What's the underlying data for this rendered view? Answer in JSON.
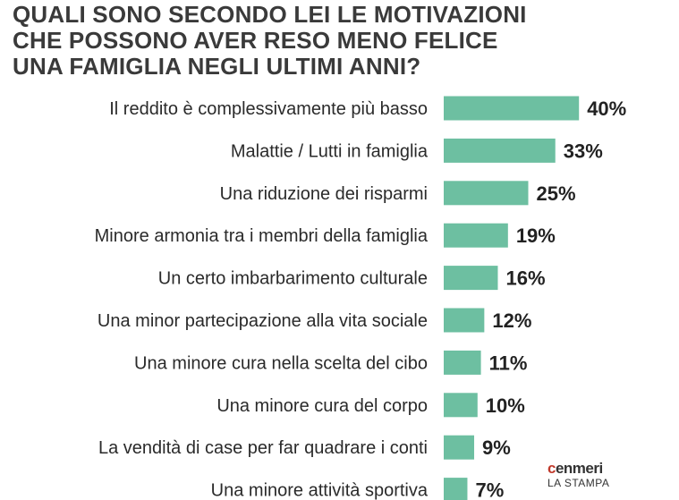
{
  "colors": {
    "bar": "#6dbfa1",
    "title": "#3a3a3a",
    "label": "#2a2a2a"
  },
  "chart_data": {
    "type": "bar",
    "orientation": "horizontal",
    "title": "QUALI SONO SECONDO LEI LE MOTIVAZIONI CHE POSSONO AVER RESO MENO FELICE UNA FAMIGLIA NEGLI ULTIMI ANNI?",
    "title_lines": [
      "QUALI SONO SECONDO LEI LE MOTIVAZIONI",
      "CHE POSSONO AVER RESO MENO FELICE",
      "UNA FAMIGLIA NEGLI ULTIMI ANNI?"
    ],
    "categories": [
      "Il reddito è complessivamente più basso",
      "Malattie / Lutti in famiglia",
      "Una riduzione dei risparmi",
      "Minore armonia tra i membri della famiglia",
      "Un certo imbarbarimento culturale",
      "Una minor partecipazione alla vita sociale",
      "Una minore cura nella scelta del cibo",
      "Una minore cura del corpo",
      "La vendità di case per far quadrare i conti",
      "Una minore attività sportiva"
    ],
    "values": [
      40,
      33,
      25,
      19,
      16,
      12,
      11,
      10,
      9,
      7
    ],
    "value_labels": [
      "40%",
      "33%",
      "25%",
      "19%",
      "16%",
      "12%",
      "11%",
      "10%",
      "9%",
      "7%"
    ],
    "unit": "%",
    "grid": false,
    "legend": "none"
  },
  "source": {
    "line1_mark": "c",
    "line1_rest": "enmeri",
    "line2": "LA STAMPA"
  }
}
